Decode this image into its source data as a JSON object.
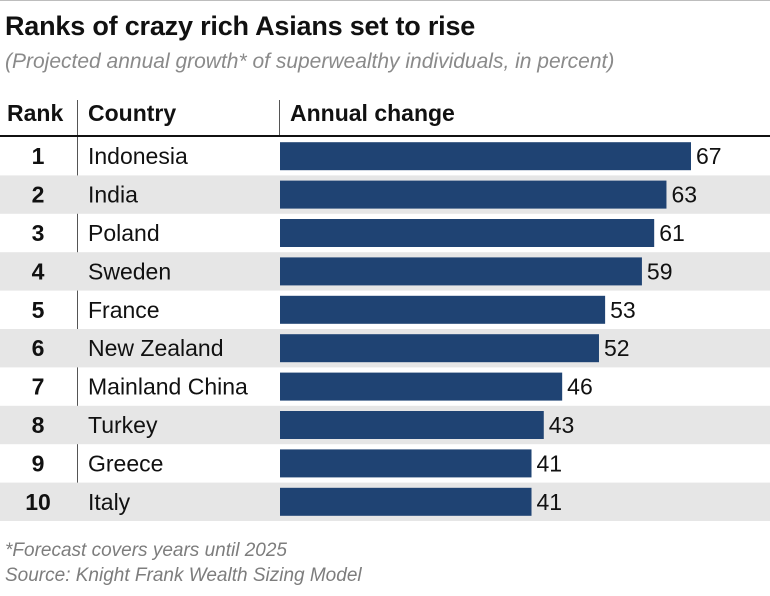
{
  "title": "Ranks of crazy rich Asians set to rise",
  "subtitle": "(Projected annual growth* of superwealthy individuals, in percent)",
  "headers": {
    "rank": "Rank",
    "country": "Country",
    "change": "Annual change"
  },
  "footnotes": {
    "forecast": "*Forecast covers years until 2025",
    "source": "Source: Knight Frank Wealth Sizing Model"
  },
  "colors": {
    "bar": "#1f4373",
    "stripe": "#e6e6e6",
    "text": "#111111"
  },
  "chart_data": {
    "type": "bar",
    "orientation": "horizontal",
    "title": "Ranks of crazy rich Asians set to rise",
    "subtitle": "(Projected annual growth* of superwealthy individuals, in percent)",
    "ranks": [
      "1",
      "2",
      "3",
      "4",
      "5",
      "6",
      "7",
      "8",
      "9",
      "10"
    ],
    "categories": [
      "Indonesia",
      "India",
      "Poland",
      "Sweden",
      "France",
      "New Zealand",
      "Mainland China",
      "Turkey",
      "Greece",
      "Italy"
    ],
    "values": [
      67,
      63,
      61,
      59,
      53,
      52,
      46,
      43,
      41,
      41
    ],
    "xlim": [
      0,
      67
    ],
    "grid": false,
    "legend": "none"
  }
}
